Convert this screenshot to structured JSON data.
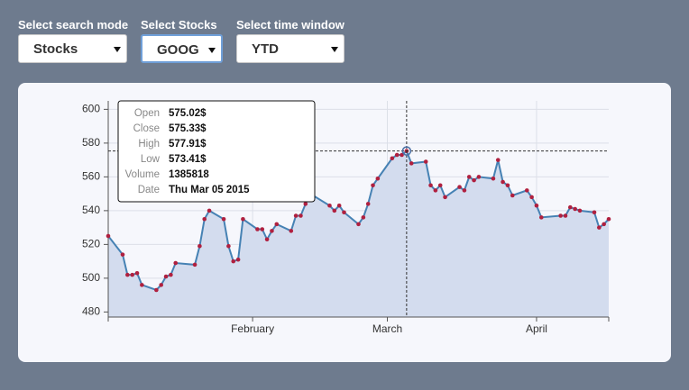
{
  "controls": [
    {
      "label": "Select search mode",
      "value": "Stocks"
    },
    {
      "label": "Select Stocks",
      "value": "GOOG"
    },
    {
      "label": "Select time window",
      "value": "YTD"
    }
  ],
  "chart_data": {
    "type": "area",
    "x": [
      "2015-01-02",
      "2015-01-05",
      "2015-01-06",
      "2015-01-07",
      "2015-01-08",
      "2015-01-09",
      "2015-01-12",
      "2015-01-13",
      "2015-01-14",
      "2015-01-15",
      "2015-01-16",
      "2015-01-20",
      "2015-01-21",
      "2015-01-22",
      "2015-01-23",
      "2015-01-26",
      "2015-01-27",
      "2015-01-28",
      "2015-01-29",
      "2015-01-30",
      "2015-02-02",
      "2015-02-03",
      "2015-02-04",
      "2015-02-05",
      "2015-02-06",
      "2015-02-09",
      "2015-02-10",
      "2015-02-11",
      "2015-02-12",
      "2015-02-13",
      "2015-02-17",
      "2015-02-18",
      "2015-02-19",
      "2015-02-20",
      "2015-02-23",
      "2015-02-24",
      "2015-02-25",
      "2015-02-26",
      "2015-02-27",
      "2015-03-02",
      "2015-03-03",
      "2015-03-04",
      "2015-03-05",
      "2015-03-06",
      "2015-03-09",
      "2015-03-10",
      "2015-03-11",
      "2015-03-12",
      "2015-03-13",
      "2015-03-16",
      "2015-03-17",
      "2015-03-18",
      "2015-03-19",
      "2015-03-20",
      "2015-03-23",
      "2015-03-24",
      "2015-03-25",
      "2015-03-26",
      "2015-03-27",
      "2015-03-30",
      "2015-03-31",
      "2015-04-01",
      "2015-04-02",
      "2015-04-06",
      "2015-04-07",
      "2015-04-08",
      "2015-04-09",
      "2015-04-10",
      "2015-04-13",
      "2015-04-14",
      "2015-04-15",
      "2015-04-16"
    ],
    "values": [
      525,
      514,
      502,
      502,
      503,
      496,
      493,
      496,
      501,
      502,
      509,
      508,
      519,
      535,
      540,
      535,
      519,
      510,
      511,
      535,
      529,
      529,
      523,
      528,
      532,
      528,
      537,
      537,
      544,
      550,
      543,
      540,
      543,
      539,
      532,
      536,
      544,
      555,
      559,
      571,
      573,
      573,
      575.33,
      568,
      569,
      555,
      552,
      555,
      548,
      554,
      552,
      560,
      558,
      560,
      559,
      570,
      557,
      555,
      549,
      552,
      548,
      543,
      536,
      537,
      537,
      542,
      541,
      540,
      539,
      530,
      532,
      535
    ],
    "color": "#4682b4",
    "fill": "#d3dcee",
    "marker_color": "#b0203f",
    "xlim": [
      "2015-01-02",
      "2015-04-16"
    ],
    "xticks": [
      {
        "value": "2015-02-01",
        "label": "February"
      },
      {
        "value": "2015-03-01",
        "label": "March"
      },
      {
        "value": "2015-04-01",
        "label": "April"
      }
    ],
    "ylim": [
      477,
      605
    ],
    "yticks": [
      480,
      500,
      520,
      540,
      560,
      580,
      600
    ],
    "grid": true
  },
  "tooltip": {
    "rows": [
      {
        "label": "Open",
        "value": "575.02$"
      },
      {
        "label": "Close",
        "value": "575.33$"
      },
      {
        "label": "High",
        "value": "577.91$"
      },
      {
        "label": "Low",
        "value": "573.41$"
      },
      {
        "label": "Volume",
        "value": "1385818"
      },
      {
        "label": "Date",
        "value": "Thu Mar 05 2015"
      }
    ]
  }
}
